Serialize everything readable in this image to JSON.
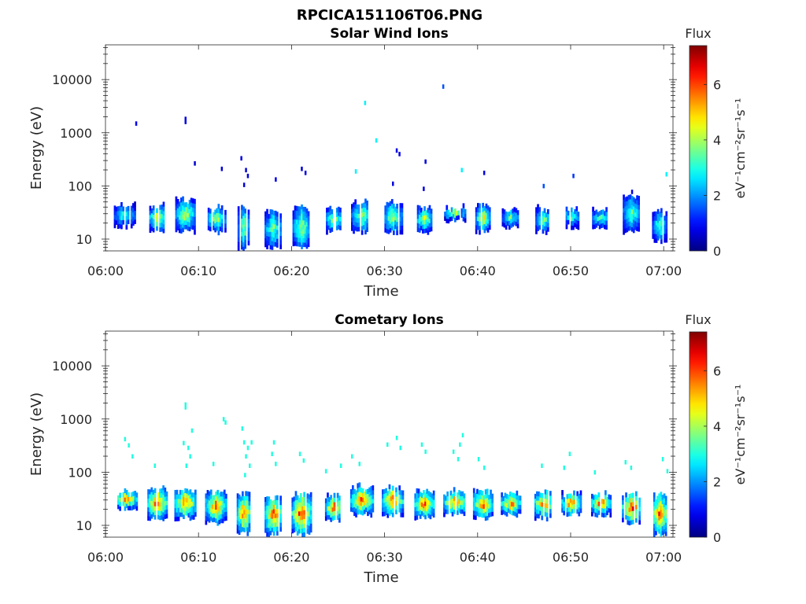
{
  "figure": {
    "title": "RPCICA151106T06.PNG"
  },
  "colormap": "jet",
  "chart_data": [
    {
      "type": "heatmap",
      "title": "Solar Wind Ions",
      "xlabel": "Time",
      "ylabel": "Energy (eV)",
      "x_ticks": [
        "06:00",
        "06:10",
        "06:20",
        "06:30",
        "06:40",
        "06:50",
        "07:00"
      ],
      "x_range_minutes": [
        0,
        61
      ],
      "y_scale": "log",
      "y_ticks": [
        10,
        100,
        1000,
        10000
      ],
      "y_tick_labels": [
        "10",
        "100",
        "1000",
        "10000"
      ],
      "y_range": [
        6,
        45000
      ],
      "colorbar": {
        "title": "Flux",
        "label": "eV⁻¹cm⁻²sr⁻¹s⁻¹",
        "range": [
          0,
          7.4
        ],
        "ticks": [
          0,
          2,
          4,
          6
        ]
      },
      "bursts": [
        {
          "t": 2.0,
          "w": 2.2,
          "emin": 15,
          "emax": 45,
          "fmax": 3.8
        },
        {
          "t": 5.5,
          "w": 1.6,
          "emin": 12,
          "emax": 45,
          "fmax": 5.2
        },
        {
          "t": 8.5,
          "w": 2.0,
          "emin": 12,
          "emax": 60,
          "fmax": 5.0
        },
        {
          "t": 11.8,
          "w": 2.0,
          "emin": 12,
          "emax": 40,
          "fmax": 4.6
        },
        {
          "t": 14.8,
          "w": 1.2,
          "emin": 6,
          "emax": 40,
          "fmax": 4.5
        },
        {
          "t": 18.0,
          "w": 1.8,
          "emin": 6,
          "emax": 35,
          "fmax": 4.2
        },
        {
          "t": 21.0,
          "w": 1.8,
          "emin": 6,
          "emax": 40,
          "fmax": 4.6
        },
        {
          "t": 24.5,
          "w": 1.6,
          "emin": 12,
          "emax": 40,
          "fmax": 4.8
        },
        {
          "t": 27.5,
          "w": 2.2,
          "emin": 12,
          "emax": 50,
          "fmax": 4.6
        },
        {
          "t": 30.8,
          "w": 2.0,
          "emin": 12,
          "emax": 50,
          "fmax": 4.6
        },
        {
          "t": 34.2,
          "w": 1.8,
          "emin": 12,
          "emax": 40,
          "fmax": 4.6
        },
        {
          "t": 37.5,
          "w": 2.2,
          "emin": 20,
          "emax": 40,
          "fmax": 4.8
        },
        {
          "t": 40.5,
          "w": 1.5,
          "emin": 12,
          "emax": 45,
          "fmax": 5.2
        },
        {
          "t": 43.5,
          "w": 1.8,
          "emin": 15,
          "emax": 35,
          "fmax": 4.0
        },
        {
          "t": 47.0,
          "w": 1.6,
          "emin": 12,
          "emax": 40,
          "fmax": 4.2
        },
        {
          "t": 50.0,
          "w": 1.8,
          "emin": 15,
          "emax": 40,
          "fmax": 4.0
        },
        {
          "t": 53.2,
          "w": 1.8,
          "emin": 15,
          "emax": 35,
          "fmax": 4.0
        },
        {
          "t": 56.5,
          "w": 1.8,
          "emin": 12,
          "emax": 70,
          "fmax": 4.0
        },
        {
          "t": 59.5,
          "w": 1.5,
          "emin": 8,
          "emax": 35,
          "fmax": 4.0
        }
      ],
      "points": [
        {
          "t": 3.2,
          "e": 1350,
          "f": 0.8
        },
        {
          "t": 8.5,
          "e": 1650,
          "f": 0.7
        },
        {
          "t": 8.5,
          "e": 1450,
          "f": 0.7
        },
        {
          "t": 9.5,
          "e": 240,
          "f": 0.6
        },
        {
          "t": 12.4,
          "e": 190,
          "f": 0.6
        },
        {
          "t": 14.5,
          "e": 300,
          "f": 0.7
        },
        {
          "t": 15.0,
          "e": 180,
          "f": 0.6
        },
        {
          "t": 15.2,
          "e": 140,
          "f": 0.6
        },
        {
          "t": 14.8,
          "e": 95,
          "f": 0.6
        },
        {
          "t": 18.2,
          "e": 120,
          "f": 0.8
        },
        {
          "t": 21.0,
          "e": 190,
          "f": 0.6
        },
        {
          "t": 21.4,
          "e": 160,
          "f": 0.7
        },
        {
          "t": 26.8,
          "e": 170,
          "f": 2.7
        },
        {
          "t": 27.8,
          "e": 3300,
          "f": 2.7
        },
        {
          "t": 29.0,
          "e": 650,
          "f": 2.7
        },
        {
          "t": 31.2,
          "e": 420,
          "f": 0.7
        },
        {
          "t": 31.5,
          "e": 360,
          "f": 0.7
        },
        {
          "t": 30.8,
          "e": 100,
          "f": 0.7
        },
        {
          "t": 34.3,
          "e": 260,
          "f": 0.7
        },
        {
          "t": 34.1,
          "e": 80,
          "f": 0.7
        },
        {
          "t": 36.2,
          "e": 6700,
          "f": 1.5
        },
        {
          "t": 38.2,
          "e": 180,
          "f": 2.7
        },
        {
          "t": 40.6,
          "e": 160,
          "f": 0.7
        },
        {
          "t": 47.0,
          "e": 90,
          "f": 1.5
        },
        {
          "t": 50.2,
          "e": 140,
          "f": 1.3
        },
        {
          "t": 56.5,
          "e": 70,
          "f": 0.7
        },
        {
          "t": 60.2,
          "e": 150,
          "f": 2.7
        }
      ]
    },
    {
      "type": "heatmap",
      "title": "Cometary Ions",
      "xlabel": "Time",
      "ylabel": "Energy (eV)",
      "x_ticks": [
        "06:00",
        "06:10",
        "06:20",
        "06:30",
        "06:40",
        "06:50",
        "07:00"
      ],
      "x_range_minutes": [
        0,
        61
      ],
      "y_scale": "log",
      "y_ticks": [
        10,
        100,
        1000,
        10000
      ],
      "y_tick_labels": [
        "10",
        "100",
        "1000",
        "10000"
      ],
      "y_range": [
        6,
        45000
      ],
      "colorbar": {
        "title": "Flux",
        "label": "eV⁻¹cm⁻²sr⁻¹s⁻¹",
        "range": [
          0,
          7.4
        ],
        "ticks": [
          0,
          2,
          4,
          6
        ]
      },
      "bursts": [
        {
          "t": 2.2,
          "w": 2.2,
          "emin": 18,
          "emax": 45,
          "fmax": 6.4
        },
        {
          "t": 5.5,
          "w": 2.0,
          "emin": 12,
          "emax": 50,
          "fmax": 6.8
        },
        {
          "t": 8.5,
          "w": 2.2,
          "emin": 12,
          "emax": 50,
          "fmax": 6.6
        },
        {
          "t": 11.8,
          "w": 2.2,
          "emin": 10,
          "emax": 45,
          "fmax": 6.4
        },
        {
          "t": 14.8,
          "w": 1.4,
          "emin": 6,
          "emax": 40,
          "fmax": 6.6
        },
        {
          "t": 18.0,
          "w": 1.8,
          "emin": 6,
          "emax": 35,
          "fmax": 6.8
        },
        {
          "t": 21.0,
          "w": 2.0,
          "emin": 6,
          "emax": 40,
          "fmax": 7.0
        },
        {
          "t": 24.5,
          "w": 1.8,
          "emin": 10,
          "emax": 40,
          "fmax": 6.6
        },
        {
          "t": 27.5,
          "w": 2.4,
          "emin": 14,
          "emax": 55,
          "fmax": 6.4
        },
        {
          "t": 30.8,
          "w": 2.2,
          "emin": 14,
          "emax": 50,
          "fmax": 6.6
        },
        {
          "t": 34.2,
          "w": 2.0,
          "emin": 12,
          "emax": 45,
          "fmax": 6.6
        },
        {
          "t": 37.5,
          "w": 2.4,
          "emin": 14,
          "emax": 45,
          "fmax": 6.6
        },
        {
          "t": 40.5,
          "w": 2.0,
          "emin": 12,
          "emax": 45,
          "fmax": 6.8
        },
        {
          "t": 43.5,
          "w": 2.0,
          "emin": 14,
          "emax": 40,
          "fmax": 6.4
        },
        {
          "t": 47.0,
          "w": 1.8,
          "emin": 12,
          "emax": 45,
          "fmax": 6.6
        },
        {
          "t": 50.0,
          "w": 2.0,
          "emin": 14,
          "emax": 40,
          "fmax": 6.6
        },
        {
          "t": 53.2,
          "w": 2.0,
          "emin": 14,
          "emax": 40,
          "fmax": 6.6
        },
        {
          "t": 56.5,
          "w": 2.0,
          "emin": 10,
          "emax": 40,
          "fmax": 6.8
        },
        {
          "t": 59.5,
          "w": 1.6,
          "emin": 6,
          "emax": 40,
          "fmax": 6.8
        }
      ],
      "points": [
        {
          "t": 2.0,
          "e": 380,
          "f": 3.0
        },
        {
          "t": 2.4,
          "e": 290,
          "f": 3.0
        },
        {
          "t": 2.8,
          "e": 180,
          "f": 3.0
        },
        {
          "t": 5.2,
          "e": 120,
          "f": 3.0
        },
        {
          "t": 8.5,
          "e": 1700,
          "f": 3.0
        },
        {
          "t": 8.5,
          "e": 1500,
          "f": 3.0
        },
        {
          "t": 8.3,
          "e": 320,
          "f": 3.0
        },
        {
          "t": 8.8,
          "e": 260,
          "f": 3.0
        },
        {
          "t": 9.2,
          "e": 550,
          "f": 3.0
        },
        {
          "t": 9.0,
          "e": 180,
          "f": 3.0
        },
        {
          "t": 8.6,
          "e": 120,
          "f": 3.0
        },
        {
          "t": 11.5,
          "e": 130,
          "f": 3.0
        },
        {
          "t": 12.6,
          "e": 900,
          "f": 3.0
        },
        {
          "t": 12.8,
          "e": 780,
          "f": 3.0
        },
        {
          "t": 14.6,
          "e": 600,
          "f": 3.0
        },
        {
          "t": 14.8,
          "e": 330,
          "f": 3.0
        },
        {
          "t": 15.2,
          "e": 260,
          "f": 3.0
        },
        {
          "t": 15.6,
          "e": 330,
          "f": 3.0
        },
        {
          "t": 15.0,
          "e": 180,
          "f": 3.0
        },
        {
          "t": 15.4,
          "e": 120,
          "f": 3.0
        },
        {
          "t": 14.9,
          "e": 80,
          "f": 3.0
        },
        {
          "t": 18.0,
          "e": 330,
          "f": 3.0
        },
        {
          "t": 17.8,
          "e": 200,
          "f": 3.0
        },
        {
          "t": 18.2,
          "e": 130,
          "f": 3.0
        },
        {
          "t": 20.8,
          "e": 200,
          "f": 3.0
        },
        {
          "t": 21.2,
          "e": 150,
          "f": 3.0
        },
        {
          "t": 23.6,
          "e": 95,
          "f": 3.0
        },
        {
          "t": 25.2,
          "e": 120,
          "f": 3.0
        },
        {
          "t": 26.4,
          "e": 180,
          "f": 3.0
        },
        {
          "t": 27.2,
          "e": 130,
          "f": 3.0
        },
        {
          "t": 30.2,
          "e": 300,
          "f": 3.0
        },
        {
          "t": 31.2,
          "e": 400,
          "f": 3.0
        },
        {
          "t": 31.6,
          "e": 260,
          "f": 3.0
        },
        {
          "t": 33.9,
          "e": 300,
          "f": 3.0
        },
        {
          "t": 34.3,
          "e": 220,
          "f": 3.0
        },
        {
          "t": 37.3,
          "e": 220,
          "f": 3.0
        },
        {
          "t": 38.0,
          "e": 300,
          "f": 3.0
        },
        {
          "t": 38.3,
          "e": 450,
          "f": 3.0
        },
        {
          "t": 37.8,
          "e": 160,
          "f": 3.0
        },
        {
          "t": 40.0,
          "e": 160,
          "f": 3.0
        },
        {
          "t": 40.6,
          "e": 110,
          "f": 3.0
        },
        {
          "t": 46.8,
          "e": 120,
          "f": 3.0
        },
        {
          "t": 49.2,
          "e": 110,
          "f": 3.0
        },
        {
          "t": 49.8,
          "e": 200,
          "f": 3.0
        },
        {
          "t": 52.5,
          "e": 90,
          "f": 3.0
        },
        {
          "t": 55.8,
          "e": 140,
          "f": 3.0
        },
        {
          "t": 56.4,
          "e": 110,
          "f": 3.0
        },
        {
          "t": 59.8,
          "e": 160,
          "f": 3.0
        },
        {
          "t": 60.3,
          "e": 95,
          "f": 3.0
        }
      ]
    }
  ]
}
